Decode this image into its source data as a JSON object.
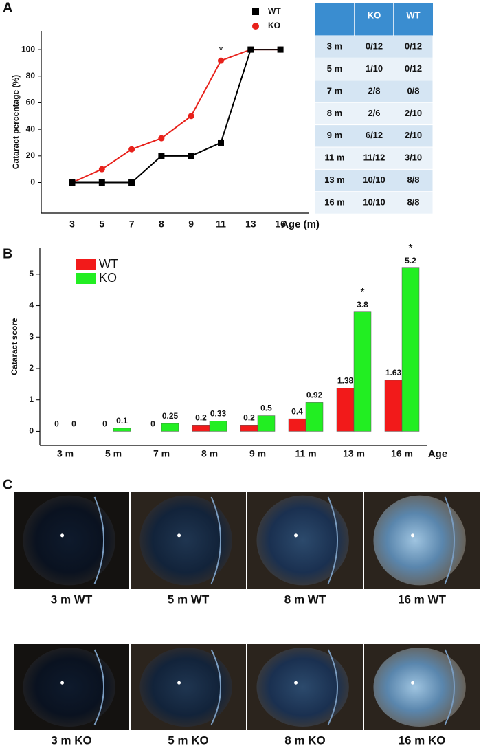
{
  "panel_labels": [
    "A",
    "B",
    "C"
  ],
  "chart_data": [
    {
      "type": "line",
      "y_label": "Cataract percentage (%)",
      "x_label": "Age (m)",
      "categories": [
        "3",
        "5",
        "7",
        "8",
        "9",
        "11",
        "13",
        "16"
      ],
      "series": [
        {
          "name": "WT",
          "color": "#000000",
          "marker": "square",
          "values": [
            0,
            0,
            0,
            20,
            20,
            30,
            100,
            100
          ]
        },
        {
          "name": "KO",
          "color": "#e8211b",
          "marker": "circle",
          "values": [
            0,
            10,
            25,
            33.3,
            50,
            91.7,
            100,
            100
          ]
        }
      ],
      "ylim": [
        -23,
        114
      ],
      "yticks": [
        0,
        20,
        40,
        60,
        80,
        100
      ],
      "grid": false,
      "annotations": [
        {
          "text": "*",
          "category": "11",
          "series": "KO"
        }
      ]
    },
    {
      "type": "bar",
      "y_label": "Cataract score",
      "x_label": "Age",
      "categories": [
        "3 m",
        "5 m",
        "7 m",
        "8 m",
        "9 m",
        "11 m",
        "13 m",
        "16 m"
      ],
      "series": [
        {
          "name": "WT",
          "color": "#f21a1a",
          "values": [
            0,
            0,
            0,
            0.2,
            0.2,
            0.4,
            1.38,
            1.63
          ]
        },
        {
          "name": "KO",
          "color": "#22ee22",
          "values": [
            0,
            0.1,
            0.25,
            0.33,
            0.5,
            0.92,
            3.8,
            5.2
          ]
        }
      ],
      "ylim": [
        -0.45,
        5.85
      ],
      "yticks": [
        0,
        1,
        2,
        3,
        4,
        5
      ],
      "grid": false,
      "annotations": [
        {
          "text": "*",
          "category": "13 m",
          "series": "KO"
        },
        {
          "text": "*",
          "category": "16 m",
          "series": "KO"
        }
      ]
    }
  ],
  "table": {
    "columns": [
      "KO",
      "WT"
    ],
    "rows": [
      [
        "3 m",
        "0/12",
        "0/12"
      ],
      [
        "5 m",
        "1/10",
        "0/12"
      ],
      [
        "7 m",
        "2/8",
        "0/8"
      ],
      [
        "8 m",
        "2/6",
        "2/10"
      ],
      [
        "9 m",
        "6/12",
        "2/10"
      ],
      [
        "11 m",
        "11/12",
        "3/10"
      ],
      [
        "13 m",
        "10/10",
        "8/8"
      ],
      [
        "16 m",
        "10/10",
        "8/8"
      ]
    ]
  },
  "photos": {
    "captions": [
      "3 m WT",
      "5 m WT",
      "8 m WT",
      "16 m WT",
      "3 m KO",
      "5 m KO",
      "8 m KO",
      "16 m KO"
    ]
  }
}
